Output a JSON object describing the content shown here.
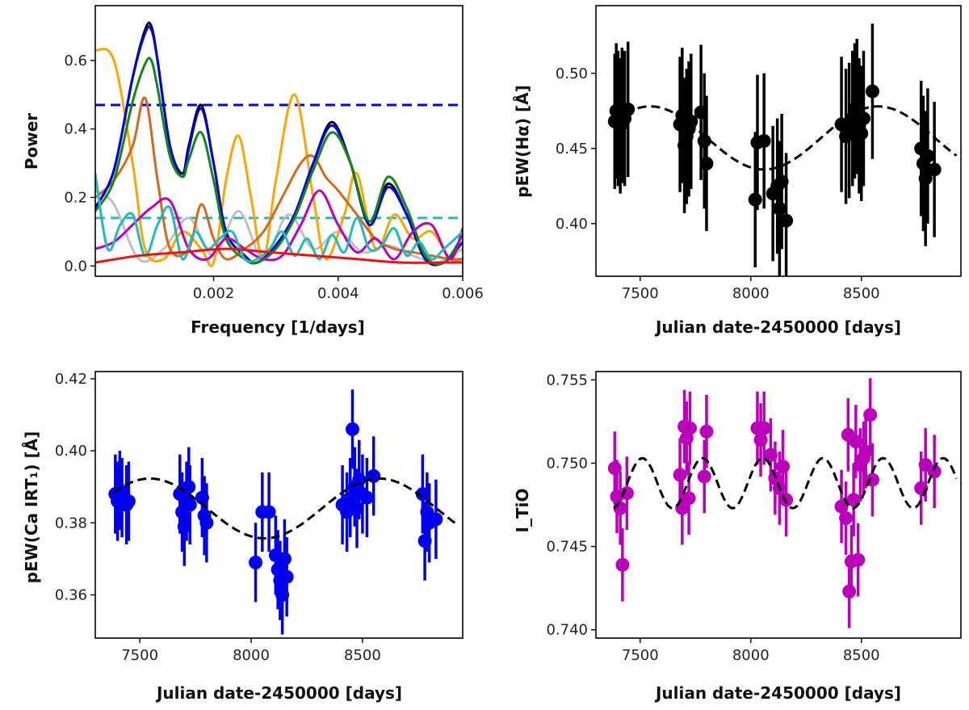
{
  "chart_data": [
    {
      "id": "periodogram",
      "type": "line",
      "xlabel": "Frequency [1/days]",
      "ylabel": "Power",
      "xlim": [
        0.0001,
        0.006
      ],
      "ylim": [
        -0.03,
        0.76
      ],
      "xticks": [
        0.002,
        0.004,
        0.006
      ],
      "xticklabels": [
        "0.002",
        "0.004",
        "0.006"
      ],
      "yticks": [
        0.0,
        0.2,
        0.4,
        0.6
      ],
      "yticklabels": [
        "0.0",
        "0.2",
        "0.4",
        "0.6"
      ],
      "hlines": [
        {
          "name": "threshold-high",
          "y": 0.47,
          "color": "#0000ee",
          "style": "dashed"
        },
        {
          "name": "threshold-low",
          "y": 0.14,
          "color": "#22bbbb",
          "style": "dashed"
        }
      ],
      "series": [
        {
          "name": "gray",
          "color": "#c0c0c0",
          "x": [
            0.0001,
            0.0004,
            0.0008,
            0.0012,
            0.0016,
            0.002,
            0.0024,
            0.0028,
            0.0032,
            0.0036,
            0.004,
            0.0044,
            0.0048,
            0.0052,
            0.0056,
            0.006
          ],
          "y": [
            0.22,
            0.18,
            0.02,
            0.05,
            0.14,
            0.03,
            0.16,
            0.02,
            0.15,
            0.05,
            0.1,
            0.04,
            0.06,
            0.03,
            0.01,
            0.05
          ]
        },
        {
          "name": "orange",
          "color": "#ffa500",
          "x": [
            0.0001,
            0.0004,
            0.0007,
            0.0009,
            0.0012,
            0.0015,
            0.0018,
            0.002,
            0.0022,
            0.0024,
            0.0026,
            0.0028,
            0.003,
            0.0033,
            0.0036,
            0.0038,
            0.0041,
            0.0043,
            0.0046,
            0.0049,
            0.0052,
            0.0055,
            0.0058,
            0.006
          ],
          "y": [
            0.63,
            0.6,
            0.3,
            0.05,
            0.02,
            0.1,
            0.05,
            0.01,
            0.25,
            0.38,
            0.2,
            0.02,
            0.25,
            0.5,
            0.2,
            0.02,
            0.15,
            0.27,
            0.05,
            0.15,
            0.08,
            0.1,
            0.02,
            0.02
          ]
        },
        {
          "name": "chocolate",
          "color": "#d2691e",
          "x": [
            0.0001,
            0.0004,
            0.0007,
            0.0009,
            0.0011,
            0.0013,
            0.0016,
            0.0018,
            0.002,
            0.0022,
            0.0025,
            0.0028,
            0.0031,
            0.0034,
            0.0036,
            0.0038,
            0.004,
            0.0043,
            0.0046,
            0.0049,
            0.0052,
            0.0055,
            0.0058,
            0.006
          ],
          "y": [
            0.2,
            0.25,
            0.35,
            0.49,
            0.25,
            0.05,
            0.05,
            0.18,
            0.08,
            0.02,
            0.05,
            0.1,
            0.2,
            0.3,
            0.32,
            0.26,
            0.22,
            0.15,
            0.08,
            0.05,
            0.04,
            0.03,
            0.02,
            0.02
          ]
        },
        {
          "name": "black",
          "color": "#000000",
          "x": [
            0.0001,
            0.0004,
            0.0007,
            0.0009,
            0.001,
            0.0011,
            0.0013,
            0.0015,
            0.0016,
            0.0018,
            0.002,
            0.0022,
            0.0025,
            0.0027,
            0.003,
            0.0033,
            0.0036,
            0.0039,
            0.0042,
            0.0045,
            0.0048,
            0.0051,
            0.0054,
            0.0057,
            0.006
          ],
          "y": [
            0.17,
            0.28,
            0.55,
            0.69,
            0.7,
            0.6,
            0.35,
            0.27,
            0.35,
            0.47,
            0.3,
            0.1,
            0.03,
            0.01,
            0.06,
            0.15,
            0.3,
            0.42,
            0.3,
            0.12,
            0.24,
            0.15,
            0.02,
            0.01,
            0.07
          ]
        },
        {
          "name": "blue",
          "color": "#0000ee",
          "x": [
            0.0001,
            0.0004,
            0.0007,
            0.0009,
            0.001,
            0.0011,
            0.0013,
            0.0015,
            0.0016,
            0.0018,
            0.002,
            0.0022,
            0.0025,
            0.0027,
            0.003,
            0.0033,
            0.0036,
            0.0039,
            0.0042,
            0.0045,
            0.0048,
            0.0051,
            0.0054,
            0.0057,
            0.006
          ],
          "y": [
            0.17,
            0.28,
            0.55,
            0.68,
            0.69,
            0.6,
            0.35,
            0.26,
            0.34,
            0.46,
            0.3,
            0.1,
            0.03,
            0.01,
            0.06,
            0.15,
            0.3,
            0.41,
            0.3,
            0.12,
            0.23,
            0.15,
            0.02,
            0.01,
            0.07
          ]
        },
        {
          "name": "green",
          "color": "#118811",
          "x": [
            0.0001,
            0.0004,
            0.0007,
            0.0009,
            0.001,
            0.0011,
            0.0013,
            0.0015,
            0.0016,
            0.0018,
            0.002,
            0.0022,
            0.0025,
            0.0027,
            0.003,
            0.0033,
            0.0036,
            0.0039,
            0.0042,
            0.0045,
            0.0048,
            0.0051,
            0.0054,
            0.0057,
            0.006
          ],
          "y": [
            0.16,
            0.25,
            0.48,
            0.59,
            0.6,
            0.52,
            0.32,
            0.26,
            0.31,
            0.39,
            0.25,
            0.08,
            0.02,
            0.01,
            0.05,
            0.14,
            0.28,
            0.39,
            0.3,
            0.13,
            0.26,
            0.17,
            0.03,
            0.01,
            0.09
          ]
        },
        {
          "name": "magenta",
          "color": "#bb00bb",
          "x": [
            0.0001,
            0.0004,
            0.0007,
            0.001,
            0.0013,
            0.0016,
            0.0019,
            0.0022,
            0.0025,
            0.0028,
            0.0031,
            0.0034,
            0.0037,
            0.004,
            0.0043,
            0.0046,
            0.0049,
            0.0052,
            0.0055,
            0.0058,
            0.006
          ],
          "y": [
            0.05,
            0.07,
            0.12,
            0.17,
            0.19,
            0.05,
            0.02,
            0.08,
            0.05,
            0.02,
            0.03,
            0.12,
            0.22,
            0.12,
            0.04,
            0.08,
            0.02,
            0.1,
            0.12,
            0.02,
            0.11
          ]
        },
        {
          "name": "cyan",
          "color": "#22bbbb",
          "x": [
            0.0001,
            0.0003,
            0.0005,
            0.0007,
            0.0009,
            0.0011,
            0.0013,
            0.0015,
            0.0017,
            0.0019,
            0.0021,
            0.0023,
            0.0025,
            0.0027,
            0.0029,
            0.0031,
            0.0033,
            0.0035,
            0.0037,
            0.0039,
            0.0041,
            0.0043,
            0.0045,
            0.0047,
            0.0049,
            0.0051,
            0.0053,
            0.0055,
            0.0057,
            0.006
          ],
          "y": [
            0.27,
            0.05,
            0.12,
            0.15,
            0.03,
            0.12,
            0.17,
            0.02,
            0.1,
            0.05,
            0.08,
            0.1,
            0.02,
            0.02,
            0.05,
            0.1,
            0.03,
            0.08,
            0.02,
            0.09,
            0.04,
            0.14,
            0.05,
            0.06,
            0.11,
            0.03,
            0.07,
            0.02,
            0.05,
            0.1
          ]
        },
        {
          "name": "red",
          "color": "#ee1111",
          "x": [
            0.0001,
            0.0008,
            0.0015,
            0.0022,
            0.0029,
            0.0036,
            0.0043,
            0.005,
            0.0057,
            0.006
          ],
          "y": [
            0.01,
            0.03,
            0.04,
            0.05,
            0.04,
            0.03,
            0.02,
            0.01,
            0.01,
            0.01
          ]
        }
      ]
    },
    {
      "id": "halpha",
      "type": "scatter",
      "xlabel": "Julian date-2450000 [days]",
      "ylabel": "pEW(Hα) [Å]",
      "xlim": [
        7300,
        8950
      ],
      "ylim": [
        0.365,
        0.545
      ],
      "xticks": [
        7500,
        8000,
        8500
      ],
      "xticklabels": [
        "7500",
        "8000",
        "8500"
      ],
      "yticks": [
        0.4,
        0.45,
        0.5
      ],
      "yticklabels": [
        "0.40",
        "0.45",
        "0.50"
      ],
      "color": "#000000",
      "error": 0.045,
      "points": [
        [
          7385,
          0.468
        ],
        [
          7392,
          0.475
        ],
        [
          7400,
          0.47
        ],
        [
          7410,
          0.465
        ],
        [
          7418,
          0.472
        ],
        [
          7430,
          0.47
        ],
        [
          7445,
          0.476
        ],
        [
          7680,
          0.466
        ],
        [
          7690,
          0.472
        ],
        [
          7700,
          0.452
        ],
        [
          7710,
          0.458
        ],
        [
          7720,
          0.463
        ],
        [
          7730,
          0.468
        ],
        [
          7775,
          0.474
        ],
        [
          7790,
          0.455
        ],
        [
          7800,
          0.44
        ],
        [
          8020,
          0.416
        ],
        [
          8030,
          0.454
        ],
        [
          8060,
          0.455
        ],
        [
          8100,
          0.42
        ],
        [
          8120,
          0.425
        ],
        [
          8130,
          0.41
        ],
        [
          8140,
          0.428
        ],
        [
          8160,
          0.402
        ],
        [
          8410,
          0.466
        ],
        [
          8430,
          0.458
        ],
        [
          8445,
          0.462
        ],
        [
          8460,
          0.47
        ],
        [
          8470,
          0.475
        ],
        [
          8480,
          0.478
        ],
        [
          8490,
          0.465
        ],
        [
          8500,
          0.46
        ],
        [
          8510,
          0.47
        ],
        [
          8550,
          0.488
        ],
        [
          8770,
          0.45
        ],
        [
          8780,
          0.44
        ],
        [
          8790,
          0.43
        ],
        [
          8800,
          0.445
        ],
        [
          8830,
          0.436
        ]
      ],
      "model": {
        "mean": 0.457,
        "amplitude": 0.021,
        "period": 1030,
        "phase_day": 7545,
        "x_range": [
          7380,
          8930
        ]
      }
    },
    {
      "id": "ca-irt",
      "type": "scatter",
      "xlabel": "Julian date-2450000 [days]",
      "ylabel": "pEW(Ca IRT₁) [Å]",
      "xlim": [
        7300,
        8950
      ],
      "ylim": [
        0.348,
        0.422
      ],
      "xticks": [
        7500,
        8000,
        8500
      ],
      "xticklabels": [
        "7500",
        "8000",
        "8500"
      ],
      "yticks": [
        0.36,
        0.38,
        0.4,
        0.42
      ],
      "yticklabels": [
        "0.36",
        "0.38",
        "0.40",
        "0.42"
      ],
      "color": "#0000ee",
      "error": 0.011,
      "points": [
        [
          7390,
          0.388
        ],
        [
          7400,
          0.386
        ],
        [
          7410,
          0.389
        ],
        [
          7420,
          0.387
        ],
        [
          7440,
          0.385
        ],
        [
          7450,
          0.386
        ],
        [
          7680,
          0.388
        ],
        [
          7690,
          0.383
        ],
        [
          7700,
          0.379
        ],
        [
          7710,
          0.386
        ],
        [
          7720,
          0.39
        ],
        [
          7725,
          0.385
        ],
        [
          7780,
          0.387
        ],
        [
          7790,
          0.382
        ],
        [
          7800,
          0.38
        ],
        [
          8020,
          0.369
        ],
        [
          8050,
          0.383
        ],
        [
          8080,
          0.383
        ],
        [
          8110,
          0.371
        ],
        [
          8120,
          0.367
        ],
        [
          8130,
          0.364
        ],
        [
          8140,
          0.36
        ],
        [
          8150,
          0.37
        ],
        [
          8160,
          0.365
        ],
        [
          8410,
          0.385
        ],
        [
          8430,
          0.383
        ],
        [
          8445,
          0.387
        ],
        [
          8455,
          0.406
        ],
        [
          8465,
          0.39
        ],
        [
          8475,
          0.384
        ],
        [
          8485,
          0.392
        ],
        [
          8500,
          0.388
        ],
        [
          8520,
          0.387
        ],
        [
          8550,
          0.393
        ],
        [
          8770,
          0.388
        ],
        [
          8780,
          0.375
        ],
        [
          8790,
          0.383
        ],
        [
          8800,
          0.38
        ],
        [
          8830,
          0.381
        ]
      ],
      "model": {
        "mean": 0.384,
        "amplitude": 0.0083,
        "period": 1030,
        "phase_day": 7545,
        "x_range": [
          7380,
          8930
        ]
      }
    },
    {
      "id": "tio",
      "type": "scatter",
      "xlabel": "Julian date-2450000 [days]",
      "ylabel": "I_TiO",
      "xlim": [
        7300,
        8950
      ],
      "ylim": [
        0.7395,
        0.7555
      ],
      "xticks": [
        7500,
        8000,
        8500
      ],
      "xticklabels": [
        "7500",
        "8000",
        "8500"
      ],
      "yticks": [
        0.74,
        0.745,
        0.75,
        0.755
      ],
      "yticklabels": [
        "0.740",
        "0.745",
        "0.750",
        "0.755"
      ],
      "color": "#bb00bb",
      "error": 0.0022,
      "points": [
        [
          7385,
          0.7497
        ],
        [
          7395,
          0.748
        ],
        [
          7410,
          0.7473
        ],
        [
          7420,
          0.7439
        ],
        [
          7440,
          0.7482
        ],
        [
          7680,
          0.7493
        ],
        [
          7690,
          0.7473
        ],
        [
          7700,
          0.7522
        ],
        [
          7710,
          0.7515
        ],
        [
          7720,
          0.7479
        ],
        [
          7725,
          0.7521
        ],
        [
          7790,
          0.7492
        ],
        [
          7800,
          0.7519
        ],
        [
          8030,
          0.7521
        ],
        [
          8045,
          0.7514
        ],
        [
          8060,
          0.7521
        ],
        [
          8090,
          0.7505
        ],
        [
          8110,
          0.7491
        ],
        [
          8130,
          0.7485
        ],
        [
          8145,
          0.7498
        ],
        [
          8160,
          0.7478
        ],
        [
          8410,
          0.7474
        ],
        [
          8430,
          0.7467
        ],
        [
          8440,
          0.7517
        ],
        [
          8445,
          0.7423
        ],
        [
          8455,
          0.7441
        ],
        [
          8465,
          0.7478
        ],
        [
          8475,
          0.7513
        ],
        [
          8485,
          0.7442
        ],
        [
          8495,
          0.7499
        ],
        [
          8510,
          0.7503
        ],
        [
          8520,
          0.7507
        ],
        [
          8540,
          0.7529
        ],
        [
          8550,
          0.749
        ],
        [
          8770,
          0.7485
        ],
        [
          8790,
          0.7499
        ],
        [
          8830,
          0.7495
        ]
      ],
      "model": {
        "mean": 0.7488,
        "amplitude": 0.0015,
        "period": 272,
        "phase_day": 7510,
        "x_range": [
          7380,
          8930
        ]
      }
    }
  ]
}
